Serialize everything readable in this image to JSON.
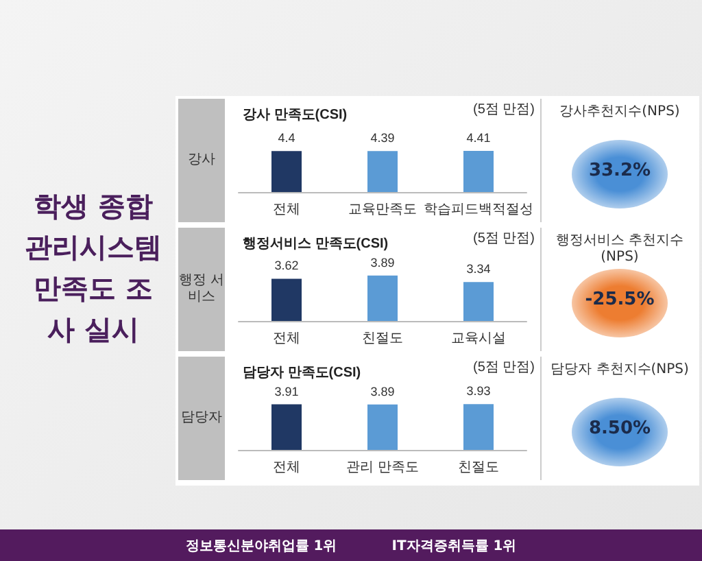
{
  "chart_data": [
    {
      "type": "other",
      "title": "학생 종합 관리시스템 만족도 조사 실시",
      "annotations": [
        "정보통신분야취업률 1위",
        "IT자격증취득률 1위"
      ]
    },
    {
      "type": "bar",
      "title": "강사 만족도(CSI)",
      "ylabel": "강사",
      "annotations": [
        "(5점 만점)"
      ],
      "categories": [
        "전체",
        "교육만족도",
        "학습피드백적절성"
      ],
      "values": [
        4.4,
        4.39,
        4.41
      ],
      "colors": [
        "#203864",
        "#5b9bd5",
        "#5b9bd5"
      ],
      "data_labels": true
    },
    {
      "type": "other",
      "title": "강사추천지수(NPS)",
      "annotations": [
        "33.2%"
      ],
      "color": "#4a8fd6"
    },
    {
      "type": "bar",
      "title": "행정서비스 만족도(CSI)",
      "ylabel": "행정 서비스",
      "annotations": [
        "(5점 만점)"
      ],
      "categories": [
        "전체",
        "친절도",
        "교육시설"
      ],
      "values": [
        3.62,
        3.89,
        3.34
      ],
      "colors": [
        "#203864",
        "#5b9bd5",
        "#5b9bd5"
      ],
      "data_labels": true
    },
    {
      "type": "other",
      "title": "행정서비스 추천지수(NPS)",
      "annotations": [
        "-25.5%"
      ],
      "color": "#ed7d31"
    },
    {
      "type": "bar",
      "title": "담당자 만족도(CSI)",
      "ylabel": "담당자",
      "annotations": [
        "(5점 만점)"
      ],
      "categories": [
        "전체",
        "관리 만족도",
        "친절도"
      ],
      "values": [
        3.91,
        3.89,
        3.93
      ],
      "colors": [
        "#203864",
        "#5b9bd5",
        "#5b9bd5"
      ],
      "data_labels": true
    },
    {
      "type": "other",
      "title": "담당자 추천지수(NPS)",
      "annotations": [
        "8.50%"
      ],
      "color": "#4a8fd6"
    }
  ]
}
